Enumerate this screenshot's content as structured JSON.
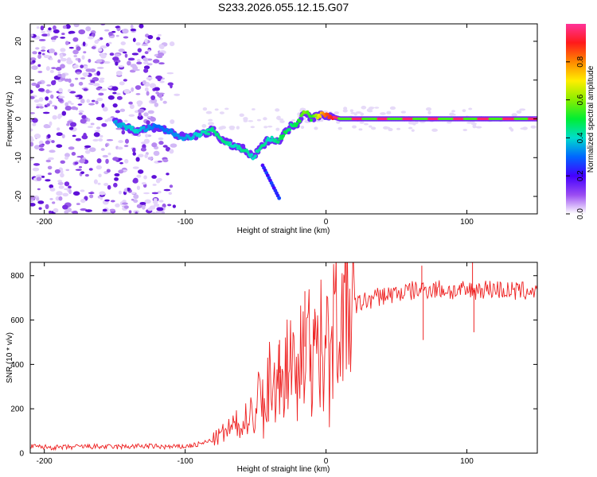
{
  "title": "S233.2026.055.12.15.G07",
  "chart_data": [
    {
      "type": "heatmap",
      "xlabel": "Height of straight line (km)",
      "ylabel": "Frequency (Hz)",
      "xlim": [
        -210,
        150
      ],
      "ylim": [
        -24.5,
        24.5
      ],
      "xticks": [
        -200,
        -100,
        0,
        100
      ],
      "yticks": [
        -20,
        -10,
        0,
        10,
        20
      ],
      "colorbar": {
        "label": "Normalized spectral amplitude",
        "range": [
          0,
          1
        ],
        "ticks": [
          0.0,
          0.2,
          0.4,
          0.6,
          0.8
        ],
        "tick_labels": [
          "0.0",
          "0.2",
          "0.4",
          "0.6",
          "0.8"
        ]
      },
      "signal_track": {
        "x": [
          -150,
          -135,
          -120,
          -100,
          -90,
          -80,
          -72,
          -65,
          -58,
          -52,
          -45,
          -40,
          -35,
          -30,
          -25,
          -20,
          -15,
          -10,
          -5,
          0,
          10,
          50,
          100,
          140,
          150
        ],
        "freq": [
          -1,
          -3,
          -2,
          -5,
          -4,
          -3,
          -6,
          -7,
          -8,
          -10,
          -7,
          -5,
          -6,
          -4,
          -2,
          -1,
          2,
          0,
          1,
          1,
          0,
          0,
          0,
          0,
          0
        ],
        "amplitude": [
          0.35,
          0.4,
          0.3,
          0.35,
          0.4,
          0.45,
          0.45,
          0.4,
          0.45,
          0.4,
          0.45,
          0.4,
          0.45,
          0.5,
          0.45,
          0.5,
          0.6,
          0.5,
          0.7,
          0.85,
          0.95,
          0.95,
          0.95,
          0.95,
          0.95
        ]
      }
    },
    {
      "type": "line",
      "xlabel": "Height of straight line (km)",
      "ylabel": "SNR (10 * v/v)",
      "xlim": [
        -210,
        150
      ],
      "ylim": [
        0,
        860
      ],
      "xticks": [
        -200,
        -100,
        0,
        100
      ],
      "yticks": [
        0,
        200,
        400,
        600,
        800
      ],
      "series": [
        {
          "name": "SNR",
          "color": "#ee2222",
          "x": [
            -210,
            -190,
            -170,
            -150,
            -130,
            -110,
            -100,
            -90,
            -80,
            -75,
            -70,
            -65,
            -60,
            -55,
            -50,
            -45,
            -40,
            -35,
            -30,
            -25,
            -20,
            -15,
            -10,
            -5,
            0,
            5,
            10,
            15,
            20,
            25,
            30,
            40,
            50,
            60,
            70,
            80,
            90,
            100,
            110,
            120,
            130,
            140,
            150
          ],
          "values": [
            30,
            25,
            30,
            28,
            32,
            28,
            30,
            40,
            60,
            80,
            100,
            120,
            140,
            170,
            220,
            280,
            330,
            350,
            380,
            420,
            450,
            480,
            500,
            530,
            560,
            590,
            610,
            640,
            660,
            680,
            690,
            710,
            720,
            730,
            740,
            740,
            730,
            730,
            740,
            740,
            730,
            730,
            735
          ]
        }
      ],
      "spikes": [
        {
          "x": -33,
          "value": 510
        },
        {
          "x": -15,
          "value": 730
        },
        {
          "x": -8,
          "value": 650
        },
        {
          "x": 68,
          "value": 845
        },
        {
          "x": 104,
          "value": 860
        },
        {
          "x": 69,
          "value": 510
        },
        {
          "x": 105,
          "value": 545
        }
      ]
    }
  ]
}
